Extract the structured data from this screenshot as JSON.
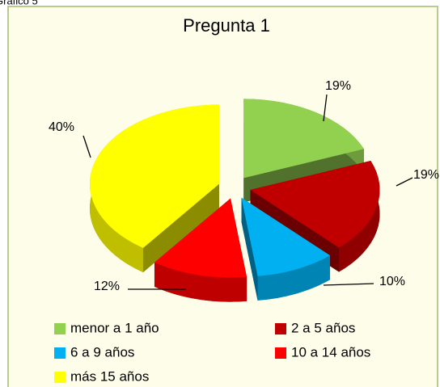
{
  "caption": "Gráfico 5",
  "chart_data": {
    "type": "pie",
    "title": "Pregunta 1",
    "categories": [
      "menor a 1 año",
      "2 a 5 años",
      "6 a 9 años",
      "10 a 14 años",
      "más 15 años"
    ],
    "values": [
      19,
      19,
      10,
      12,
      40
    ],
    "value_labels": [
      "19%",
      "19%",
      "10%",
      "12%",
      "40%"
    ],
    "colors": [
      "#92d050",
      "#c00000",
      "#00b0f0",
      "#ff0000",
      "#ffff00"
    ],
    "legend": "bottom"
  }
}
